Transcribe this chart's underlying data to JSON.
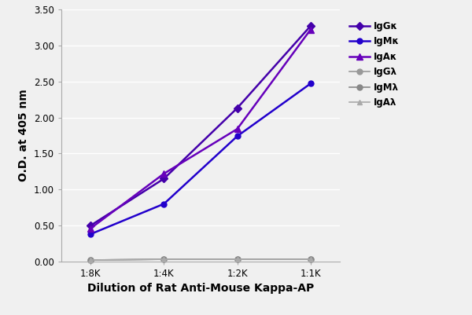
{
  "x_labels": [
    "1:8K",
    "1:4K",
    "1:2K",
    "1:1K"
  ],
  "x_values": [
    0,
    1,
    2,
    3
  ],
  "series": [
    {
      "label": "IgGκ",
      "color": "#4400aa",
      "marker": "D",
      "markersize": 5,
      "linewidth": 1.8,
      "values": [
        0.5,
        1.15,
        2.13,
        3.27
      ]
    },
    {
      "label": "IgMκ",
      "color": "#2200cc",
      "marker": "o",
      "markersize": 5,
      "linewidth": 1.8,
      "values": [
        0.38,
        0.8,
        1.74,
        2.47
      ]
    },
    {
      "label": "IgAκ",
      "color": "#6600bb",
      "marker": "^",
      "markersize": 6,
      "linewidth": 1.8,
      "values": [
        0.46,
        1.22,
        1.84,
        3.22
      ]
    },
    {
      "label": "IgGλ",
      "color": "#999999",
      "marker": "o",
      "markersize": 5,
      "linewidth": 1.2,
      "values": [
        0.02,
        0.03,
        0.03,
        0.03
      ]
    },
    {
      "label": "IgMλ",
      "color": "#888888",
      "marker": "o",
      "markersize": 5,
      "linewidth": 1.2,
      "values": [
        0.02,
        0.03,
        0.03,
        0.03
      ]
    },
    {
      "label": "IgAλ",
      "color": "#aaaaaa",
      "marker": "^",
      "markersize": 5,
      "linewidth": 1.2,
      "values": [
        0.02,
        0.03,
        0.03,
        0.03
      ]
    }
  ],
  "ylabel": "O.D. at 405 nm",
  "xlabel": "Dilution of Rat Anti-Mouse Kappa-AP",
  "ylim": [
    0.0,
    3.5
  ],
  "yticks": [
    0.0,
    0.5,
    1.0,
    1.5,
    2.0,
    2.5,
    3.0,
    3.5
  ],
  "background_color": "#f0f0f0",
  "plot_bg_color": "#f0f0f0",
  "grid_color": "#ffffff",
  "legend_fontsize": 8.5,
  "axis_label_fontsize": 10,
  "tick_fontsize": 8.5
}
